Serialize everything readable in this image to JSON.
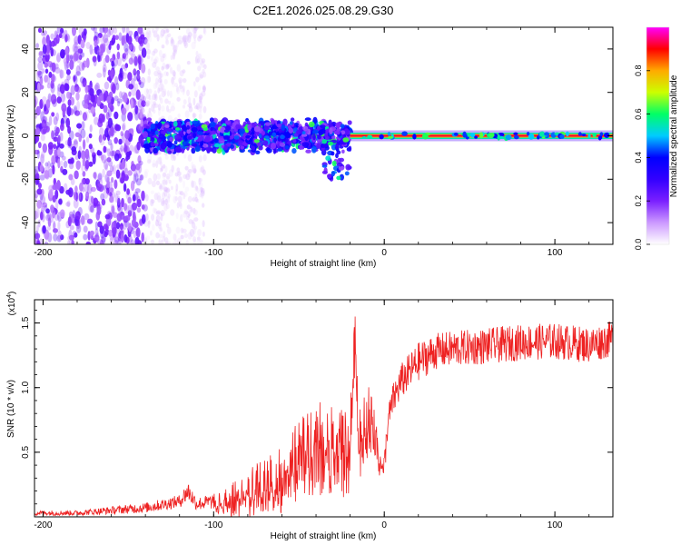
{
  "title": "C2E1.2026.025.08.29.G30",
  "chart_data": [
    {
      "id": "spectrogram",
      "type": "heatmap",
      "xlabel": "Height of straight line (km)",
      "ylabel": "Frequency (Hz)",
      "xlim": [
        -205,
        134
      ],
      "ylim": [
        -50,
        50
      ],
      "xticks": [
        -200,
        -100,
        0,
        100
      ],
      "yticks": [
        -40,
        -20,
        0,
        20,
        40
      ],
      "colorbar": {
        "label": "Normalized spectral amplitude",
        "range": [
          0,
          1
        ],
        "ticks": [
          "0.0",
          "0.2",
          "0.4",
          "0.6",
          "0.8"
        ],
        "tick_values": [
          0.0,
          0.2,
          0.4,
          0.6,
          0.8
        ],
        "colors": [
          "#ffffff",
          "#cc99ff",
          "#7a1fff",
          "#3300ff",
          "#0000ff",
          "#00ccff",
          "#00ff66",
          "#ccff00",
          "#ffaa00",
          "#ff0000",
          "#ff00ff"
        ]
      },
      "regions": [
        {
          "name": "scattered noise",
          "x": [
            -205,
            -140
          ],
          "freq": [
            -50,
            50
          ],
          "amplitude": [
            0.1,
            0.25
          ]
        },
        {
          "name": "faint noise",
          "x": [
            -140,
            -105
          ],
          "freq": [
            -50,
            50
          ],
          "amplitude": [
            0.02,
            0.08
          ]
        },
        {
          "name": "broad band",
          "x": [
            -140,
            -20
          ],
          "freq": [
            -8,
            8
          ],
          "amplitude": [
            0.15,
            0.45
          ]
        },
        {
          "name": "narrow carrier",
          "x": [
            -20,
            134
          ],
          "freq": [
            -1,
            1
          ],
          "amplitude": [
            0.9,
            1.0
          ]
        }
      ]
    },
    {
      "id": "snr",
      "type": "line",
      "xlabel": "Height of straight line (km)",
      "ylabel": "SNR (10 * v/v)",
      "y_multiplier": "(x10",
      "y_multiplier_exp": "4",
      "y_multiplier_close": ")",
      "xlim": [
        -205,
        134
      ],
      "ylim": [
        0,
        1.68
      ],
      "xticks": [
        -200,
        -100,
        0,
        100
      ],
      "yticks": [
        "0.5",
        "1.0",
        "1.5"
      ],
      "ytick_values": [
        0.5,
        1.0,
        1.5
      ],
      "color": "#ee2222",
      "series": [
        {
          "name": "SNR",
          "x": [
            -205,
            -180,
            -160,
            -140,
            -120,
            -115,
            -110,
            -100,
            -90,
            -80,
            -70,
            -60,
            -50,
            -40,
            -30,
            -20,
            -17,
            -15,
            -12,
            -10,
            -8,
            -5,
            -2,
            0,
            2,
            5,
            10,
            20,
            30,
            40,
            60,
            80,
            100,
            120,
            134
          ],
          "y": [
            0.03,
            0.03,
            0.05,
            0.07,
            0.12,
            0.2,
            0.1,
            0.12,
            0.15,
            0.22,
            0.28,
            0.35,
            0.5,
            0.6,
            0.62,
            0.55,
            1.45,
            0.6,
            0.7,
            0.8,
            0.8,
            0.6,
            0.45,
            0.38,
            0.72,
            0.9,
            1.05,
            1.2,
            1.28,
            1.3,
            1.32,
            1.35,
            1.36,
            1.33,
            1.38
          ],
          "noise": [
            0.02,
            0.02,
            0.03,
            0.04,
            0.05,
            0.08,
            0.05,
            0.06,
            0.1,
            0.15,
            0.2,
            0.22,
            0.25,
            0.3,
            0.3,
            0.28,
            0.2,
            0.2,
            0.25,
            0.25,
            0.22,
            0.15,
            0.1,
            0.1,
            0.12,
            0.13,
            0.14,
            0.15,
            0.14,
            0.14,
            0.14,
            0.14,
            0.14,
            0.14,
            0.14
          ]
        }
      ]
    }
  ]
}
